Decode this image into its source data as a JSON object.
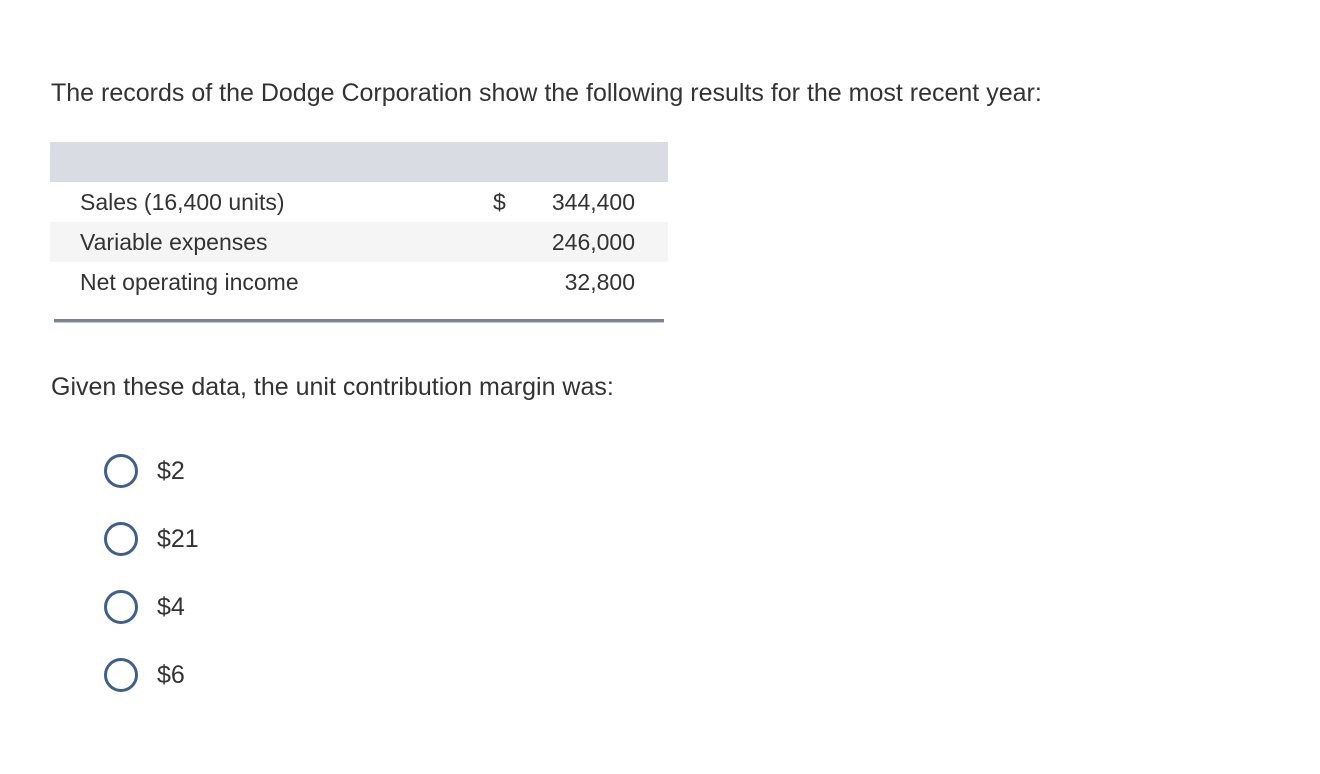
{
  "question": {
    "intro": "The records of the Dodge Corporation show the following results for the most recent year:",
    "prompt": "Given these data, the unit contribution margin was:"
  },
  "table": {
    "rows": [
      {
        "label": "Sales (16,400 units)",
        "currency": "$",
        "value": "344,400"
      },
      {
        "label": "Variable expenses",
        "currency": "",
        "value": "246,000"
      },
      {
        "label": "Net operating income",
        "currency": "",
        "value": "32,800"
      }
    ]
  },
  "options": [
    {
      "label": "$2",
      "selected": false
    },
    {
      "label": "$21",
      "selected": false
    },
    {
      "label": "$4",
      "selected": false
    },
    {
      "label": "$6",
      "selected": false
    }
  ],
  "colors": {
    "radio_border": "#3f5f8c",
    "header_band": "#d9dce3",
    "alt_row": "#f5f5f5",
    "text": "#333333"
  }
}
